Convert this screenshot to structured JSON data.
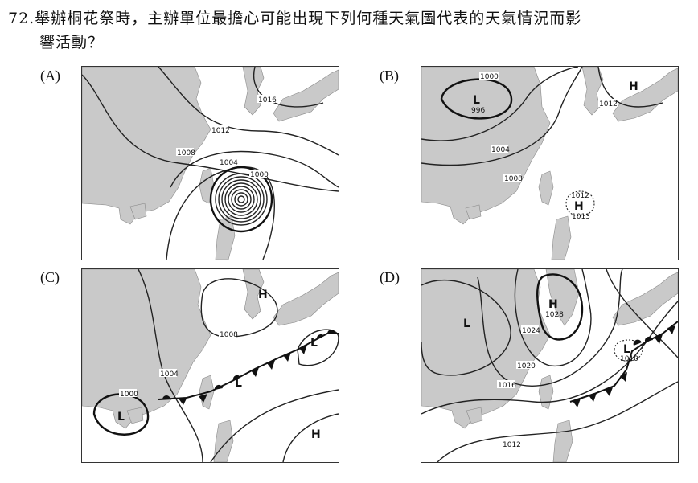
{
  "question": {
    "number": "72.",
    "text_line1": "舉辦桐花祭時，主辦單位最擔心可能出現下列何種天氣圖代表的天氣情況而影",
    "text_line2": "響活動？"
  },
  "options": [
    {
      "label": "(A)",
      "isobars": [
        "1016",
        "1012",
        "1008",
        "1004",
        "1000"
      ],
      "systems": []
    },
    {
      "label": "(B)",
      "isobars": [
        "1000",
        "1004",
        "1008",
        "1012",
        "1012",
        "1013"
      ],
      "systems": [
        "L",
        "996",
        "H",
        "H"
      ]
    },
    {
      "label": "(C)",
      "isobars": [
        "1008",
        "1004",
        "1000"
      ],
      "systems": [
        "H",
        "L",
        "L",
        "L",
        "H"
      ]
    },
    {
      "label": "(D)",
      "isobars": [
        "1028",
        "1024",
        "1020",
        "1016",
        "1012",
        "1010"
      ],
      "systems": [
        "L",
        "H",
        "L"
      ]
    }
  ]
}
